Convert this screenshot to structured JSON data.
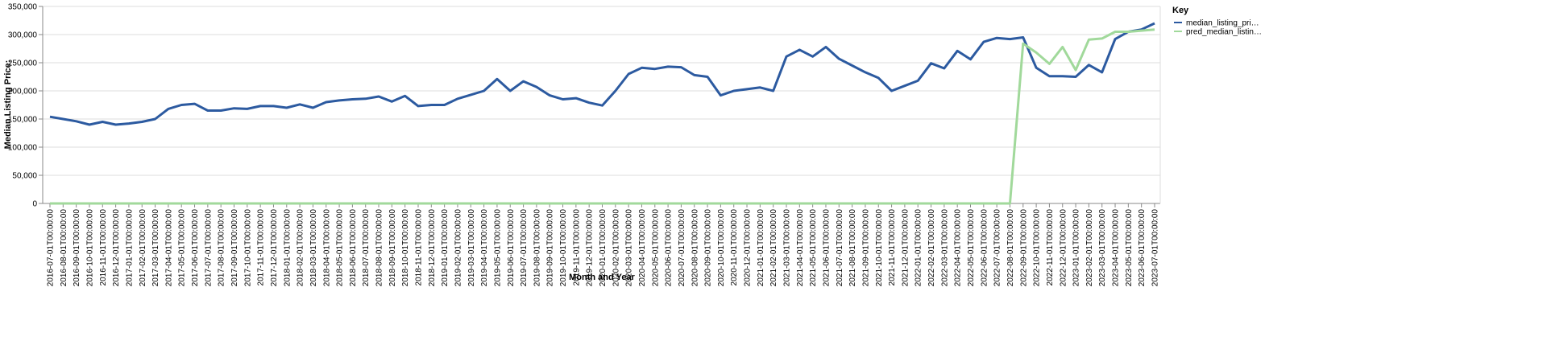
{
  "chart_data": {
    "type": "line",
    "x_label": "Month and Year",
    "y_label": "Median Listing Price:",
    "legend_title": "Key",
    "legend": "right",
    "grid": true,
    "categories": [
      "2016-07-01T00:00:00",
      "2016-08-01T00:00:00",
      "2016-09-01T00:00:00",
      "2016-10-01T00:00:00",
      "2016-11-01T00:00:00",
      "2016-12-01T00:00:00",
      "2017-01-01T00:00:00",
      "2017-02-01T00:00:00",
      "2017-03-01T00:00:00",
      "2017-04-01T00:00:00",
      "2017-05-01T00:00:00",
      "2017-06-01T00:00:00",
      "2017-07-01T00:00:00",
      "2017-08-01T00:00:00",
      "2017-09-01T00:00:00",
      "2017-10-01T00:00:00",
      "2017-11-01T00:00:00",
      "2017-12-01T00:00:00",
      "2018-01-01T00:00:00",
      "2018-02-01T00:00:00",
      "2018-03-01T00:00:00",
      "2018-04-01T00:00:00",
      "2018-05-01T00:00:00",
      "2018-06-01T00:00:00",
      "2018-07-01T00:00:00",
      "2018-08-01T00:00:00",
      "2018-09-01T00:00:00",
      "2018-10-01T00:00:00",
      "2018-11-01T00:00:00",
      "2018-12-01T00:00:00",
      "2019-01-01T00:00:00",
      "2019-02-01T00:00:00",
      "2019-03-01T00:00:00",
      "2019-04-01T00:00:00",
      "2019-05-01T00:00:00",
      "2019-06-01T00:00:00",
      "2019-07-01T00:00:00",
      "2019-08-01T00:00:00",
      "2019-09-01T00:00:00",
      "2019-10-01T00:00:00",
      "2019-11-01T00:00:00",
      "2019-12-01T00:00:00",
      "2020-01-01T00:00:00",
      "2020-02-01T00:00:00",
      "2020-03-01T00:00:00",
      "2020-04-01T00:00:00",
      "2020-05-01T00:00:00",
      "2020-06-01T00:00:00",
      "2020-07-01T00:00:00",
      "2020-08-01T00:00:00",
      "2020-09-01T00:00:00",
      "2020-10-01T00:00:00",
      "2020-11-01T00:00:00",
      "2020-12-01T00:00:00",
      "2021-01-01T00:00:00",
      "2021-02-01T00:00:00",
      "2021-03-01T00:00:00",
      "2021-04-01T00:00:00",
      "2021-05-01T00:00:00",
      "2021-06-01T00:00:00",
      "2021-07-01T00:00:00",
      "2021-08-01T00:00:00",
      "2021-09-01T00:00:00",
      "2021-10-01T00:00:00",
      "2021-11-01T00:00:00",
      "2021-12-01T00:00:00",
      "2022-01-01T00:00:00",
      "2022-02-01T00:00:00",
      "2022-03-01T00:00:00",
      "2022-04-01T00:00:00",
      "2022-05-01T00:00:00",
      "2022-06-01T00:00:00",
      "2022-07-01T00:00:00",
      "2022-08-01T00:00:00",
      "2022-09-01T00:00:00",
      "2022-10-01T00:00:00",
      "2022-11-01T00:00:00",
      "2022-12-01T00:00:00",
      "2023-01-01T00:00:00",
      "2023-02-01T00:00:00",
      "2023-03-01T00:00:00",
      "2023-04-01T00:00:00",
      "2023-05-01T00:00:00",
      "2023-06-01T00:00:00",
      "2023-07-01T00:00:00"
    ],
    "series": [
      {
        "name": "median_listing_pri…",
        "color": "#2c5aa0",
        "values": [
          154000,
          150000,
          146000,
          140000,
          145000,
          140000,
          142000,
          145000,
          150000,
          168000,
          175000,
          177000,
          165000,
          165000,
          169000,
          168000,
          173000,
          173000,
          170000,
          176000,
          170000,
          180000,
          183000,
          185000,
          186000,
          190000,
          181000,
          191000,
          173000,
          175000,
          175000,
          186000,
          193000,
          200000,
          221000,
          200000,
          217000,
          207000,
          192000,
          185000,
          187000,
          179000,
          174000,
          200000,
          230000,
          241000,
          239000,
          243000,
          242000,
          228000,
          225000,
          192000,
          200000,
          203000,
          206000,
          200000,
          261000,
          273000,
          261000,
          278000,
          257000,
          245000,
          233000,
          223000,
          200000,
          209000,
          218000,
          249000,
          240000,
          271000,
          256000,
          287000,
          294000,
          292000,
          295000,
          241000,
          226000,
          226000,
          225000,
          246000,
          233000,
          292000,
          305000,
          309000,
          320000
        ]
      },
      {
        "name": "pred_median_listin…",
        "color": "#a1d99b",
        "values": [
          0,
          0,
          0,
          0,
          0,
          0,
          0,
          0,
          0,
          0,
          0,
          0,
          0,
          0,
          0,
          0,
          0,
          0,
          0,
          0,
          0,
          0,
          0,
          0,
          0,
          0,
          0,
          0,
          0,
          0,
          0,
          0,
          0,
          0,
          0,
          0,
          0,
          0,
          0,
          0,
          0,
          0,
          0,
          0,
          0,
          0,
          0,
          0,
          0,
          0,
          0,
          0,
          0,
          0,
          0,
          0,
          0,
          0,
          0,
          0,
          0,
          0,
          0,
          0,
          0,
          0,
          0,
          0,
          0,
          0,
          0,
          0,
          0,
          0,
          284000,
          268000,
          248000,
          278000,
          237000,
          291000,
          293000,
          305000,
          305000,
          307000,
          309000
        ]
      }
    ],
    "ylim": [
      0,
      350000
    ],
    "yticks": [
      0,
      {
        "value": 50000,
        "label": "50,000"
      },
      {
        "value": 100000,
        "label": "100,000"
      },
      {
        "value": 150000,
        "label": "150,000"
      },
      {
        "value": 200000,
        "label": "200,000"
      },
      {
        "value": 250000,
        "label": "250,000"
      },
      {
        "value": 300000,
        "label": "300,000"
      },
      {
        "value": 350000,
        "label": "350,000"
      }
    ]
  }
}
